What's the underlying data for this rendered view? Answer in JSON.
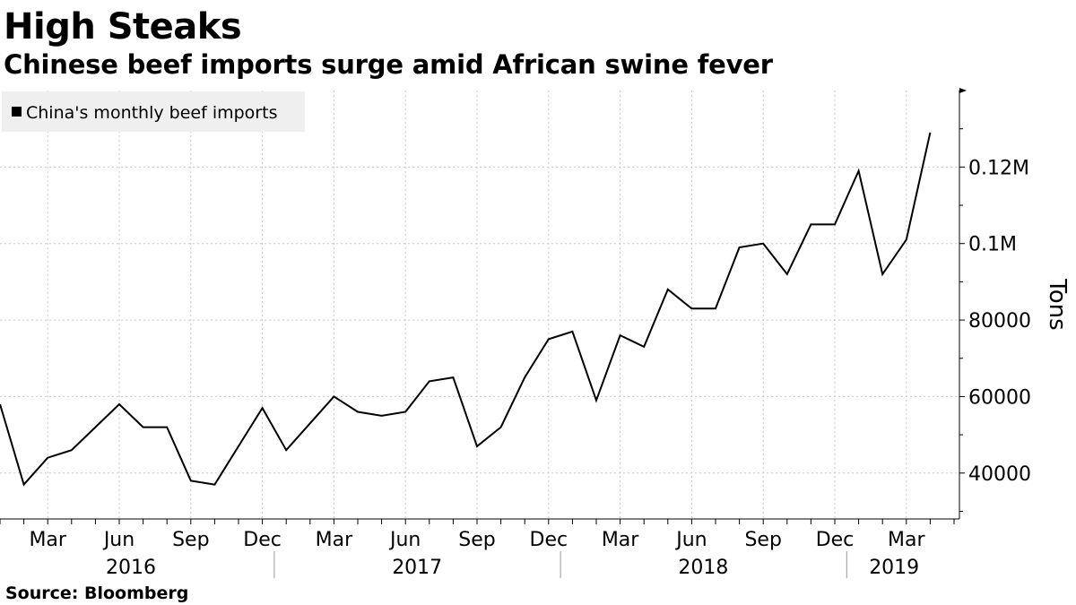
{
  "title": "High Steaks",
  "subtitle": "Chinese beef imports surge amid African swine fever",
  "source": "Source: Bloomberg",
  "colors": {
    "line": "#000000",
    "background": "#ffffff",
    "legend_bg": "#efefef",
    "grid": "#c8c8c8"
  },
  "chart_data": {
    "type": "line",
    "title": "High Steaks",
    "subtitle": "Chinese beef imports surge amid African swine fever",
    "ylabel": "Tons",
    "xlabel": "",
    "ylim": [
      28000,
      140000
    ],
    "yticks": [
      40000,
      60000,
      80000,
      100000,
      120000
    ],
    "ytick_labels": [
      "40000",
      "60000",
      "80000",
      "0.1M",
      "0.12M"
    ],
    "grid": true,
    "legend_position": "top-left",
    "x": [
      "2016-01",
      "2016-02",
      "2016-03",
      "2016-04",
      "2016-05",
      "2016-06",
      "2016-07",
      "2016-08",
      "2016-09",
      "2016-10",
      "2016-11",
      "2016-12",
      "2017-01",
      "2017-02",
      "2017-03",
      "2017-04",
      "2017-05",
      "2017-06",
      "2017-07",
      "2017-08",
      "2017-09",
      "2017-10",
      "2017-11",
      "2017-12",
      "2018-01",
      "2018-02",
      "2018-03",
      "2018-04",
      "2018-05",
      "2018-06",
      "2018-07",
      "2018-08",
      "2018-09",
      "2018-10",
      "2018-11",
      "2018-12",
      "2019-01",
      "2019-02",
      "2019-03",
      "2019-04"
    ],
    "month_ticks": [
      "Mar",
      "Jun",
      "Sep",
      "Dec",
      "Mar",
      "Jun",
      "Sep",
      "Dec",
      "Mar",
      "Jun",
      "Sep",
      "Dec",
      "Mar"
    ],
    "month_tick_dates": [
      "2016-03",
      "2016-06",
      "2016-09",
      "2016-12",
      "2017-03",
      "2017-06",
      "2017-09",
      "2017-12",
      "2018-03",
      "2018-06",
      "2018-09",
      "2018-12",
      "2019-03"
    ],
    "year_labels": [
      "2016",
      "2017",
      "2018",
      "2019"
    ],
    "series": [
      {
        "name": "China's monthly beef imports",
        "color": "#000000",
        "values": [
          58000,
          37000,
          44000,
          46000,
          52000,
          58000,
          52000,
          52000,
          38000,
          37000,
          47000,
          57000,
          46000,
          53000,
          60000,
          56000,
          55000,
          56000,
          64000,
          65000,
          47000,
          52000,
          65000,
          75000,
          77000,
          59000,
          76000,
          73000,
          88000,
          83000,
          83000,
          99000,
          100000,
          92000,
          105000,
          105000,
          119000,
          92000,
          101000,
          129000
        ]
      }
    ]
  }
}
